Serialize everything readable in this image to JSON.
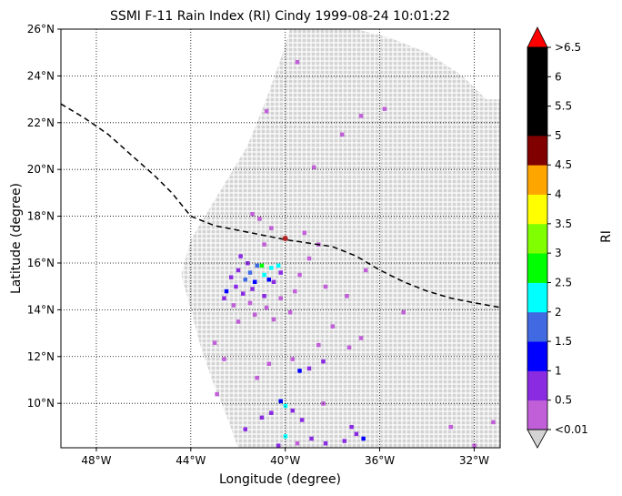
{
  "title": "SSMI F-11 Rain Index (RI) Cindy 1999-08-24 10:01:22",
  "xlabel": "Longitude (degree)",
  "ylabel": "Latitude (degree)",
  "colorbar_label": "RI",
  "x_ticks": [
    {
      "value": -48,
      "label": "48°W"
    },
    {
      "value": -44,
      "label": "44°W"
    },
    {
      "value": -40,
      "label": "40°W"
    },
    {
      "value": -36,
      "label": "36°W"
    },
    {
      "value": -32,
      "label": "32°W"
    }
  ],
  "y_ticks": [
    {
      "value": 10,
      "label": "10°N"
    },
    {
      "value": 12,
      "label": "12°N"
    },
    {
      "value": 14,
      "label": "14°N"
    },
    {
      "value": 16,
      "label": "16°N"
    },
    {
      "value": 18,
      "label": "18°N"
    },
    {
      "value": 20,
      "label": "20°N"
    },
    {
      "value": 22,
      "label": "22°N"
    },
    {
      "value": 24,
      "label": "24°N"
    },
    {
      "value": 26,
      "label": "26°N"
    }
  ],
  "extent": {
    "lon": [
      -49.5,
      -30.9
    ],
    "lat": [
      8.1,
      26
    ]
  },
  "colorbar": {
    "under_color": "#d3d3d3",
    "over_color": "#ff0000",
    "bins": [
      {
        "label": "<0.01",
        "color": "#c05fd8"
      },
      {
        "label": "0.5",
        "color": "#8a2be2"
      },
      {
        "label": "1",
        "color": "#0000ff"
      },
      {
        "label": "1.5",
        "color": "#4169e1"
      },
      {
        "label": "2",
        "color": "#00ffff"
      },
      {
        "label": "2.5",
        "color": "#00ff00"
      },
      {
        "label": "3",
        "color": "#7fff00"
      },
      {
        "label": "3.5",
        "color": "#ffff00"
      },
      {
        "label": "4",
        "color": "#ffa500"
      },
      {
        "label": "4.5",
        "color": "#800000"
      },
      {
        "label": "5",
        "color": "#000000"
      },
      {
        "label": "5.5",
        "color": "#000000"
      },
      {
        "label": "6",
        "color": "#000000"
      }
    ],
    "top_label": ">6.5"
  },
  "track": [
    [
      -49.5,
      22.8
    ],
    [
      -48.5,
      22.2
    ],
    [
      -47.5,
      21.5
    ],
    [
      -46.5,
      20.6
    ],
    [
      -45.5,
      19.7
    ],
    [
      -44.8,
      19.0
    ],
    [
      -44.0,
      18.0
    ],
    [
      -43.0,
      17.6
    ],
    [
      -42.0,
      17.4
    ],
    [
      -40.0,
      17.0
    ],
    [
      -38.0,
      16.7
    ],
    [
      -37.0,
      16.3
    ],
    [
      -36.0,
      15.7
    ],
    [
      -35.0,
      15.2
    ],
    [
      -34.0,
      14.8
    ],
    [
      -33.0,
      14.5
    ],
    [
      -32.0,
      14.3
    ],
    [
      -30.9,
      14.1
    ]
  ],
  "center": {
    "lon": -40.0,
    "lat": 17.05,
    "color": "#b22222"
  },
  "swath": {
    "left_edge": [
      [
        -42.0,
        8.1
      ],
      [
        -42.5,
        9.5
      ],
      [
        -43.1,
        11.0
      ],
      [
        -43.6,
        12.5
      ],
      [
        -44.0,
        14.0
      ],
      [
        -44.4,
        15.5
      ],
      [
        -44.0,
        17.0
      ],
      [
        -42.8,
        19.0
      ],
      [
        -41.6,
        21.0
      ],
      [
        -40.8,
        23.0
      ],
      [
        -40.1,
        25.0
      ],
      [
        -39.8,
        26.0
      ]
    ],
    "right_edge": [
      [
        -30.9,
        8.1
      ],
      [
        -30.9,
        23.0
      ],
      [
        -31.5,
        23.0
      ],
      [
        -32.5,
        24.0
      ],
      [
        -34.0,
        25.0
      ],
      [
        -35.5,
        25.6
      ],
      [
        -37.0,
        26.0
      ]
    ]
  },
  "rain_cells": [
    {
      "lon": -41.9,
      "lat": 16.3,
      "v": 1
    },
    {
      "lon": -41.6,
      "lat": 16.0,
      "v": 1
    },
    {
      "lon": -42.0,
      "lat": 15.7,
      "v": 1
    },
    {
      "lon": -42.3,
      "lat": 15.4,
      "v": 1
    },
    {
      "lon": -42.1,
      "lat": 15.0,
      "v": 1
    },
    {
      "lon": -41.8,
      "lat": 14.7,
      "v": 1
    },
    {
      "lon": -42.5,
      "lat": 14.8,
      "v": 2
    },
    {
      "lon": -42.6,
      "lat": 14.5,
      "v": 1
    },
    {
      "lon": -41.4,
      "lat": 14.9,
      "v": 1
    },
    {
      "lon": -40.5,
      "lat": 15.2,
      "v": 1
    },
    {
      "lon": -40.2,
      "lat": 15.6,
      "v": 1
    },
    {
      "lon": -40.9,
      "lat": 14.6,
      "v": 1
    },
    {
      "lon": -41.5,
      "lat": 15.6,
      "v": 3
    },
    {
      "lon": -41.2,
      "lat": 15.9,
      "v": 3
    },
    {
      "lon": -40.9,
      "lat": 15.5,
      "v": 4
    },
    {
      "lon": -40.6,
      "lat": 15.8,
      "v": 4
    },
    {
      "lon": -41.0,
      "lat": 15.9,
      "v": 5
    },
    {
      "lon": -40.3,
      "lat": 15.9,
      "v": 4
    },
    {
      "lon": -41.7,
      "lat": 15.3,
      "v": 3
    },
    {
      "lon": -40.7,
      "lat": 15.3,
      "v": 2
    },
    {
      "lon": -41.3,
      "lat": 15.2,
      "v": 2
    },
    {
      "lon": -42.2,
      "lat": 14.2,
      "v": 0
    },
    {
      "lon": -41.5,
      "lat": 14.3,
      "v": 0
    },
    {
      "lon": -40.8,
      "lat": 14.1,
      "v": 0
    },
    {
      "lon": -40.2,
      "lat": 14.5,
      "v": 0
    },
    {
      "lon": -39.6,
      "lat": 14.8,
      "v": 0
    },
    {
      "lon": -39.4,
      "lat": 15.5,
      "v": 0
    },
    {
      "lon": -39.0,
      "lat": 16.2,
      "v": 0
    },
    {
      "lon": -38.6,
      "lat": 16.8,
      "v": 0
    },
    {
      "lon": -39.2,
      "lat": 17.3,
      "v": 0
    },
    {
      "lon": -40.6,
      "lat": 17.5,
      "v": 0
    },
    {
      "lon": -40.9,
      "lat": 16.8,
      "v": 0
    },
    {
      "lon": -41.3,
      "lat": 13.8,
      "v": 0
    },
    {
      "lon": -40.5,
      "lat": 13.6,
      "v": 0
    },
    {
      "lon": -39.8,
      "lat": 13.9,
      "v": 0
    },
    {
      "lon": -42.0,
      "lat": 13.5,
      "v": 0
    },
    {
      "lon": -37.4,
      "lat": 14.6,
      "v": 0
    },
    {
      "lon": -38.3,
      "lat": 15.0,
      "v": 0
    },
    {
      "lon": -38.0,
      "lat": 13.3,
      "v": 0
    },
    {
      "lon": -36.8,
      "lat": 12.8,
      "v": 0
    },
    {
      "lon": -37.3,
      "lat": 12.4,
      "v": 0
    },
    {
      "lon": -38.6,
      "lat": 12.5,
      "v": 0
    },
    {
      "lon": -39.7,
      "lat": 11.9,
      "v": 0
    },
    {
      "lon": -39.0,
      "lat": 11.5,
      "v": 1
    },
    {
      "lon": -38.4,
      "lat": 11.8,
      "v": 1
    },
    {
      "lon": -39.4,
      "lat": 11.4,
      "v": 2
    },
    {
      "lon": -40.7,
      "lat": 11.7,
      "v": 0
    },
    {
      "lon": -41.2,
      "lat": 11.1,
      "v": 0
    },
    {
      "lon": -42.6,
      "lat": 11.9,
      "v": 0
    },
    {
      "lon": -43.0,
      "lat": 12.6,
      "v": 0
    },
    {
      "lon": -42.9,
      "lat": 10.4,
      "v": 0
    },
    {
      "lon": -40.2,
      "lat": 10.1,
      "v": 2
    },
    {
      "lon": -40.0,
      "lat": 9.9,
      "v": 4
    },
    {
      "lon": -39.7,
      "lat": 9.7,
      "v": 1
    },
    {
      "lon": -40.6,
      "lat": 9.6,
      "v": 1
    },
    {
      "lon": -41.0,
      "lat": 9.4,
      "v": 1
    },
    {
      "lon": -39.3,
      "lat": 9.3,
      "v": 1
    },
    {
      "lon": -38.4,
      "lat": 10.0,
      "v": 0
    },
    {
      "lon": -37.2,
      "lat": 9.0,
      "v": 1
    },
    {
      "lon": -37.0,
      "lat": 8.7,
      "v": 1
    },
    {
      "lon": -36.7,
      "lat": 8.5,
      "v": 2
    },
    {
      "lon": -37.5,
      "lat": 8.4,
      "v": 1
    },
    {
      "lon": -38.3,
      "lat": 8.3,
      "v": 1
    },
    {
      "lon": -38.9,
      "lat": 8.5,
      "v": 1
    },
    {
      "lon": -39.5,
      "lat": 8.3,
      "v": 0
    },
    {
      "lon": -40.3,
      "lat": 8.2,
      "v": 1
    },
    {
      "lon": -40.0,
      "lat": 8.6,
      "v": 4
    },
    {
      "lon": -41.7,
      "lat": 8.9,
      "v": 1
    },
    {
      "lon": -35.0,
      "lat": 13.9,
      "v": 0
    },
    {
      "lon": -36.6,
      "lat": 15.7,
      "v": 0
    },
    {
      "lon": -37.6,
      "lat": 21.5,
      "v": 0
    },
    {
      "lon": -36.8,
      "lat": 22.3,
      "v": 0
    },
    {
      "lon": -35.8,
      "lat": 22.6,
      "v": 0
    },
    {
      "lon": -38.8,
      "lat": 20.1,
      "v": 0
    },
    {
      "lon": -40.8,
      "lat": 22.5,
      "v": 0
    },
    {
      "lon": -39.5,
      "lat": 24.6,
      "v": 0
    },
    {
      "lon": -41.1,
      "lat": 17.9,
      "v": 0
    },
    {
      "lon": -41.4,
      "lat": 18.1,
      "v": 0
    },
    {
      "lon": -32.0,
      "lat": 8.2,
      "v": 0
    },
    {
      "lon": -33.0,
      "lat": 9.0,
      "v": 0
    },
    {
      "lon": -31.2,
      "lat": 9.2,
      "v": 0
    }
  ]
}
